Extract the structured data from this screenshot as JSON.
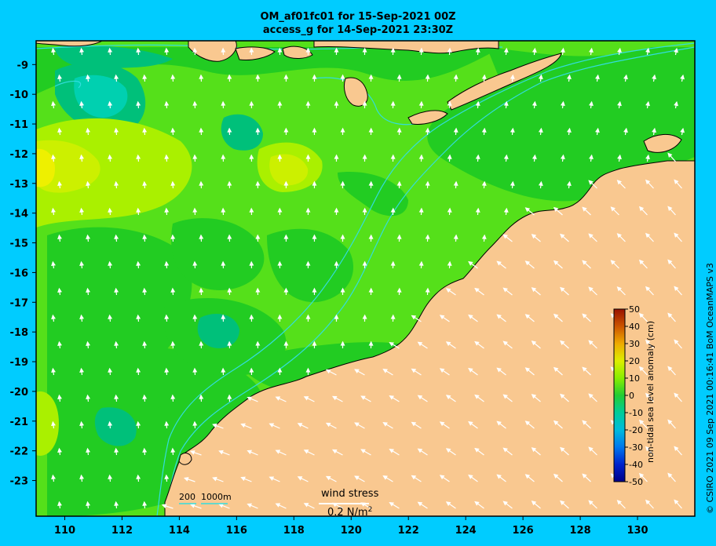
{
  "title": {
    "line1": "OM_af01fc01 for 15-Sep-2021 00Z",
    "line2": "access_g for 14-Sep-2021 23:30Z"
  },
  "credit": "© CSIRO 2021  09 Sep 2021 00:16:41 BoM OceanMAPS v3",
  "map": {
    "lon_range": [
      109,
      132
    ],
    "lat_range": [
      -24.2,
      -8.2
    ],
    "x_ticks": [
      110,
      112,
      114,
      116,
      118,
      120,
      122,
      124,
      126,
      128,
      130
    ],
    "y_ticks": [
      -9,
      -10,
      -11,
      -12,
      -13,
      -14,
      -15,
      -16,
      -17,
      -18,
      -19,
      -20,
      -21,
      -22,
      -23
    ],
    "land_color": "#f9c890",
    "bathymetry_color": "#33dddd",
    "vector_color": "#ffffff"
  },
  "colorbar": {
    "label": "non-tidal sea level anomaly (cm)",
    "min": -50,
    "max": 50,
    "ticks": [
      "50",
      "40",
      "30",
      "20",
      "10",
      "0",
      "-10",
      "-20",
      "-30",
      "-40",
      "-50"
    ]
  },
  "depth_legend": {
    "label_200": "200",
    "label_1000": "1000m"
  },
  "wind_legend": {
    "label": "wind stress",
    "scale": "0.2 N/m",
    "sup": "2"
  }
}
